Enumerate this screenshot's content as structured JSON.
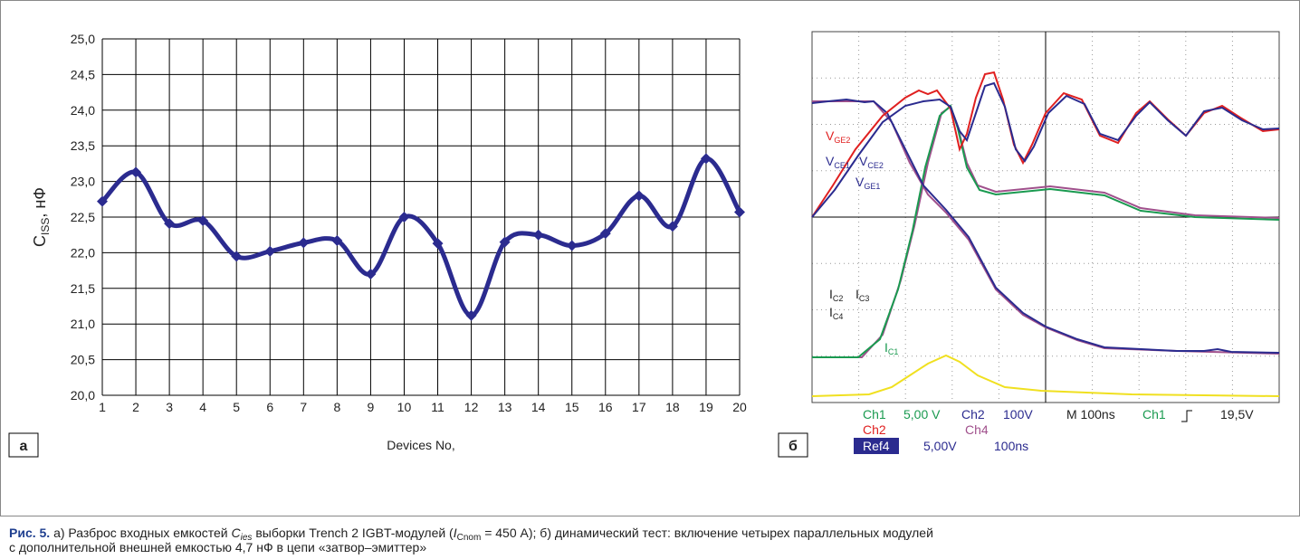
{
  "chart_data": {
    "type": "line",
    "y_label": {
      "main": "C",
      "sub": "ISS",
      "rest": ", нФ"
    },
    "x_label": "Devices No,",
    "categories": [
      "1",
      "2",
      "3",
      "4",
      "5",
      "6",
      "7",
      "8",
      "9",
      "10",
      "11",
      "12",
      "13",
      "14",
      "15",
      "16",
      "17",
      "18",
      "19",
      "20"
    ],
    "values": [
      22.72,
      23.13,
      22.41,
      22.45,
      21.95,
      22.02,
      22.14,
      22.17,
      21.7,
      22.5,
      22.13,
      21.12,
      22.15,
      22.25,
      22.1,
      22.27,
      22.8,
      22.37,
      23.32,
      22.57
    ],
    "color": "#2b2b8f",
    "ylim": [
      20,
      25
    ],
    "yticks": [
      {
        "value": 20,
        "label": "20,0"
      },
      {
        "value": 20.5,
        "label": "20,5"
      },
      {
        "value": 21,
        "label": "21,0"
      },
      {
        "value": 21.5,
        "label": "21,5"
      },
      {
        "value": 22,
        "label": "22,0"
      },
      {
        "value": 22.5,
        "label": "22,5"
      },
      {
        "value": 23,
        "label": "23,0"
      },
      {
        "value": 23.5,
        "label": "23,5"
      },
      {
        "value": 24,
        "label": "24,0"
      },
      {
        "value": 24.5,
        "label": "24,5"
      },
      {
        "value": 25,
        "label": "25,0"
      }
    ],
    "grid": true
  },
  "panels": {
    "a": "а",
    "b": "б"
  },
  "scope": {
    "vce1": {
      "main": "V",
      "sub": "CE1"
    },
    "vce2": {
      "main": "V",
      "sub": "CE2"
    },
    "vge2": {
      "main": "V",
      "sub": "GE2"
    },
    "vge1": {
      "main": "V",
      "sub": "GE1"
    },
    "ic2": {
      "main": "I",
      "sub": "C2"
    },
    "ic3": {
      "main": "I",
      "sub": "C3"
    },
    "ic4": {
      "main": "I",
      "sub": "C4"
    },
    "ic1": {
      "main": "I",
      "sub": "C1"
    },
    "status": {
      "ch1": "Ch1",
      "ch1_scale": "5,00 V",
      "ch2": "Ch2",
      "ch2_scale": "100V",
      "time": "M 100ns",
      "trig_ch": "Ch1",
      "trig_level": "19,5V",
      "ch2b": "Ch2",
      "ch4": "Ch4",
      "ref4": "Ref4",
      "ref4_scale": "5,00V",
      "ref4_time": "100ns"
    }
  },
  "caption": {
    "label": "Рис. 5.",
    "t1": " а) Разброс входных емкостей ",
    "c": "C",
    "c_sub": "ies",
    "t2": " выборки Trench 2 IGBT-модулей (",
    "i": "I",
    "i_sub": "Cnom",
    "t3": " = 450 А); б) динамический тест: включение четырех параллельных модулей",
    "line2": "с дополнительной внешней емкостью 4,7 нФ в цепи «затвор–эмиттер»"
  }
}
